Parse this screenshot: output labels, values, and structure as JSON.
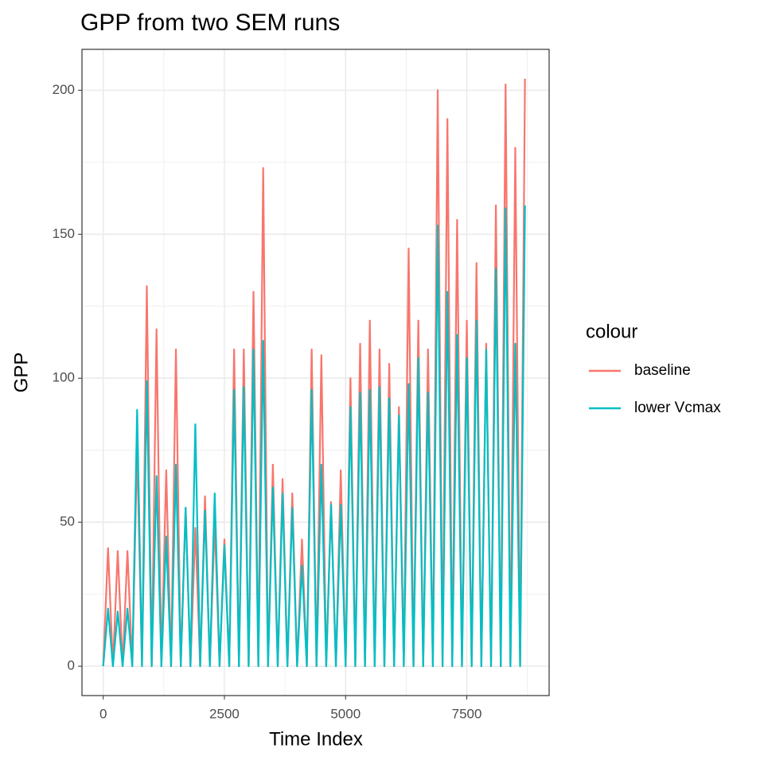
{
  "chart_data": {
    "type": "line",
    "title": "GPP from two SEM runs",
    "x_label": "Time Index",
    "y_label": "GPP",
    "x": [
      0,
      100,
      200,
      300,
      400,
      500,
      600,
      700,
      800,
      900,
      1000,
      1100,
      1200,
      1300,
      1400,
      1500,
      1600,
      1700,
      1800,
      1900,
      2000,
      2100,
      2200,
      2300,
      2400,
      2500,
      2600,
      2700,
      2800,
      2900,
      3000,
      3100,
      3200,
      3300,
      3400,
      3500,
      3600,
      3700,
      3800,
      3900,
      4000,
      4100,
      4200,
      4300,
      4400,
      4500,
      4600,
      4700,
      4800,
      4900,
      5000,
      5100,
      5200,
      5300,
      5400,
      5500,
      5600,
      5700,
      5800,
      5900,
      6000,
      6100,
      6200,
      6300,
      6400,
      6500,
      6600,
      6700,
      6800,
      6900,
      7000,
      7100,
      7200,
      7300,
      7400,
      7500,
      7600,
      7700,
      7800,
      7900,
      8000,
      8100,
      8200,
      8300,
      8400,
      8500,
      8600,
      8700
    ],
    "series": [
      {
        "name": "baseline",
        "color": "#F8766D",
        "values": [
          0,
          41,
          0,
          40,
          0,
          40,
          0,
          76,
          0,
          132,
          0,
          117,
          0,
          68,
          0,
          110,
          0,
          55,
          0,
          48,
          0,
          59,
          0,
          50,
          0,
          44,
          0,
          110,
          0,
          110,
          0,
          130,
          0,
          173,
          0,
          70,
          0,
          65,
          0,
          60,
          0,
          44,
          0,
          110,
          0,
          108,
          0,
          57,
          0,
          68,
          0,
          100,
          0,
          112,
          0,
          120,
          0,
          110,
          0,
          105,
          0,
          90,
          0,
          145,
          0,
          120,
          0,
          110,
          0,
          200,
          0,
          190,
          0,
          155,
          0,
          120,
          0,
          140,
          0,
          112,
          0,
          160,
          0,
          202,
          0,
          180,
          0,
          204
        ]
      },
      {
        "name": "lower Vcmax",
        "color": "#00BFC4",
        "values": [
          0,
          20,
          0,
          19,
          0,
          20,
          0,
          89,
          0,
          99,
          0,
          66,
          0,
          45,
          0,
          70,
          0,
          55,
          0,
          84,
          0,
          54,
          0,
          60,
          0,
          42,
          0,
          96,
          0,
          97,
          0,
          110,
          0,
          113,
          0,
          62,
          0,
          60,
          0,
          55,
          0,
          35,
          0,
          96,
          0,
          70,
          0,
          56,
          0,
          56,
          0,
          90,
          0,
          95,
          0,
          96,
          0,
          97,
          0,
          93,
          0,
          87,
          0,
          98,
          0,
          107,
          0,
          95,
          0,
          153,
          0,
          130,
          0,
          115,
          0,
          107,
          0,
          120,
          0,
          110,
          0,
          138,
          0,
          159,
          0,
          112,
          0,
          160
        ]
      }
    ],
    "xlim": [
      -438,
      9198
    ],
    "xticks": [
      0,
      2500,
      5000,
      7500
    ],
    "xminor": [
      1250,
      3750,
      6250,
      8750
    ],
    "ylim": [
      -10.2,
      214.2
    ],
    "yticks": [
      0,
      50,
      100,
      150,
      200
    ],
    "yminor": [
      25,
      75,
      125,
      175
    ],
    "grid": true,
    "legend_title": "colour",
    "legend_position": "right"
  }
}
